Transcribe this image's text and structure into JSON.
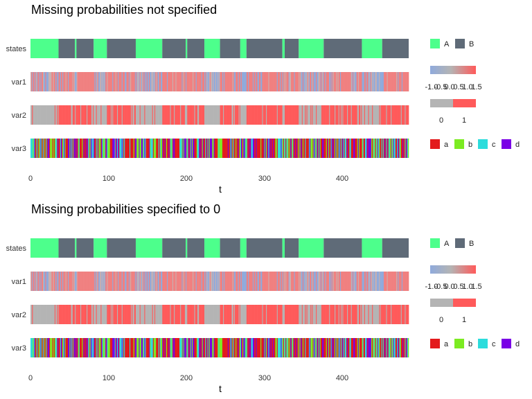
{
  "chart_data": [
    {
      "type": "heatmap",
      "title": "Missing probabilities not specified",
      "xlabel": "t",
      "ylabel": "",
      "xlim": [
        0,
        485
      ],
      "x_ticks": [
        0,
        100,
        200,
        300,
        400
      ],
      "rows": [
        "states",
        "var1",
        "var2",
        "var3"
      ],
      "states": {
        "categories": [
          "A",
          "B"
        ],
        "colors": {
          "A": "#4DFF8C",
          "B": "#5F6B78"
        },
        "segments": [
          {
            "start": 0,
            "end": 36,
            "value": "A"
          },
          {
            "start": 36,
            "end": 57,
            "value": "B"
          },
          {
            "start": 57,
            "end": 59,
            "value": "A"
          },
          {
            "start": 59,
            "end": 81,
            "value": "B"
          },
          {
            "start": 81,
            "end": 98,
            "value": "A"
          },
          {
            "start": 98,
            "end": 135,
            "value": "B"
          },
          {
            "start": 135,
            "end": 169,
            "value": "A"
          },
          {
            "start": 169,
            "end": 199,
            "value": "B"
          },
          {
            "start": 199,
            "end": 201,
            "value": "A"
          },
          {
            "start": 201,
            "end": 223,
            "value": "B"
          },
          {
            "start": 223,
            "end": 243,
            "value": "A"
          },
          {
            "start": 243,
            "end": 269,
            "value": "B"
          },
          {
            "start": 269,
            "end": 277,
            "value": "A"
          },
          {
            "start": 277,
            "end": 323,
            "value": "B"
          },
          {
            "start": 323,
            "end": 326,
            "value": "A"
          },
          {
            "start": 326,
            "end": 344,
            "value": "B"
          },
          {
            "start": 344,
            "end": 376,
            "value": "A"
          },
          {
            "start": 376,
            "end": 425,
            "value": "B"
          },
          {
            "start": 425,
            "end": 451,
            "value": "A"
          },
          {
            "start": 451,
            "end": 485,
            "value": "B"
          }
        ]
      },
      "var1": {
        "scale": "continuous",
        "legend_ticks": [
          "-1.0",
          "-0.5",
          "0.0",
          "0.5",
          "1.0",
          "1.5"
        ],
        "color_low": "#8FAADC",
        "color_mid": "#B4B4B4",
        "color_high": "#FF5A5A"
      },
      "var2": {
        "categories": [
          "0",
          "1"
        ],
        "colors": {
          "0": "#B4B4B4",
          "1": "#FF5A5A"
        }
      },
      "var3": {
        "categories": [
          "a",
          "b",
          "c",
          "d"
        ],
        "colors": {
          "a": "#E31A1C",
          "b": "#7CEB22",
          "c": "#2CDCDC",
          "d": "#7A00E6"
        }
      }
    },
    {
      "type": "heatmap",
      "title": "Missing probabilities specified to 0",
      "xlabel": "t",
      "ylabel": "",
      "xlim": [
        0,
        485
      ],
      "x_ticks": [
        0,
        100,
        200,
        300,
        400
      ],
      "rows": [
        "states",
        "var1",
        "var2",
        "var3"
      ],
      "same_data_as_panel": 0
    }
  ],
  "colors": {
    "var1_fill": "#F08080"
  }
}
